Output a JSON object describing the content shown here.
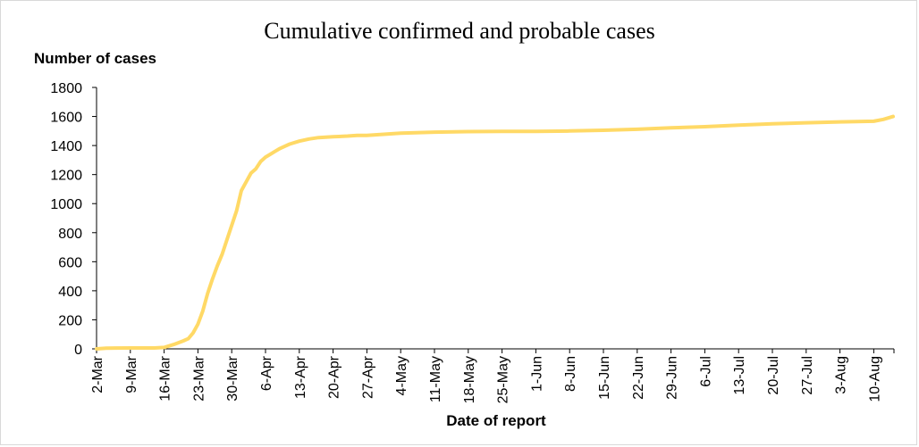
{
  "chart_data": {
    "type": "line",
    "title": "Cumulative confirmed and probable cases",
    "ylabel": "Number of cases",
    "xlabel": "Date of report",
    "ylim": [
      0,
      1800
    ],
    "yticks": [
      0,
      200,
      400,
      600,
      800,
      1000,
      1200,
      1400,
      1600,
      1800
    ],
    "xticks": [
      "2-Mar",
      "9-Mar",
      "16-Mar",
      "23-Mar",
      "30-Mar",
      "6-Apr",
      "13-Apr",
      "20-Apr",
      "27-Apr",
      "4-May",
      "11-May",
      "18-May",
      "25-May",
      "1-Jun",
      "8-Jun",
      "15-Jun",
      "22-Jun",
      "29-Jun",
      "6-Jul",
      "13-Jul",
      "20-Jul",
      "27-Jul",
      "3-Aug",
      "10-Aug"
    ],
    "grid": false,
    "line_color": "#FFD966",
    "series": [
      {
        "x": [
          "2-Mar",
          "4-Mar",
          "9-Mar",
          "14-Mar",
          "16-Mar",
          "18-Mar",
          "20-Mar",
          "21-Mar",
          "22-Mar",
          "23-Mar",
          "24-Mar",
          "25-Mar",
          "26-Mar",
          "27-Mar",
          "28-Mar",
          "29-Mar",
          "30-Mar",
          "31-Mar",
          "1-Apr",
          "2-Apr",
          "3-Apr",
          "4-Apr",
          "5-Apr",
          "6-Apr",
          "7-Apr",
          "8-Apr",
          "9-Apr",
          "10-Apr",
          "11-Apr",
          "13-Apr",
          "15-Apr",
          "17-Apr",
          "20-Apr",
          "23-Apr",
          "25-Apr",
          "27-Apr",
          "4-May",
          "11-May",
          "18-May",
          "25-May",
          "1-Jun",
          "8-Jun",
          "15-Jun",
          "22-Jun",
          "29-Jun",
          "6-Jul",
          "13-Jul",
          "20-Jul",
          "27-Jul",
          "3-Aug",
          "10-Aug",
          "12-Aug",
          "14-Aug"
        ],
        "y": [
          0,
          5,
          6,
          6,
          10,
          30,
          55,
          70,
          110,
          170,
          260,
          380,
          480,
          570,
          650,
          750,
          850,
          950,
          1090,
          1150,
          1210,
          1240,
          1290,
          1320,
          1340,
          1360,
          1380,
          1395,
          1410,
          1430,
          1445,
          1455,
          1460,
          1465,
          1470,
          1470,
          1485,
          1492,
          1496,
          1498,
          1498,
          1500,
          1505,
          1512,
          1522,
          1530,
          1540,
          1550,
          1557,
          1563,
          1567,
          1580,
          1600
        ]
      }
    ]
  }
}
